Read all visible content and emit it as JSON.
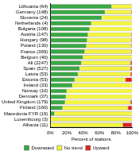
{
  "chart_data": {
    "type": "bar",
    "orientation": "horizontal",
    "stacked": true,
    "categories": [
      "Lithuania (64)",
      "Germany (148)",
      "Slovenia (24)",
      "Netherlands (4)",
      "Bulgaria (108)",
      "Austria (147)",
      "Hungary (98)",
      "Poland (130)",
      "France (369)",
      "Belgium (40)",
      "All (2247)",
      "Spain (527)",
      "Latvia (53)",
      "Estonia (53)",
      "Ireland (33)",
      "Norway (10)",
      "Denmark (37)",
      "United Kingdom (179)",
      "Finland (160)",
      "Macedonia FYR (19)",
      "Luxembourg (3)",
      "Albania (11)"
    ],
    "series": [
      {
        "name": "Downward",
        "color": "#3aa845",
        "values": [
          75,
          67,
          63,
          50,
          48,
          46,
          45,
          44,
          42,
          40,
          38,
          36,
          34,
          30,
          27,
          20,
          19,
          18,
          15,
          5,
          0,
          0
        ]
      },
      {
        "name": "No trend",
        "color": "#f5f542",
        "values": [
          25,
          32,
          37,
          50,
          52,
          53,
          54,
          55,
          57,
          60,
          60,
          62,
          64,
          62,
          73,
          80,
          81,
          80,
          80,
          95,
          100,
          89
        ]
      },
      {
        "name": "Upward",
        "color": "#e02020",
        "values": [
          0,
          1,
          0,
          0,
          0,
          1,
          1,
          1,
          1,
          0,
          2,
          2,
          2,
          8,
          0,
          0,
          0,
          2,
          5,
          0,
          0,
          11
        ]
      }
    ],
    "x_label": "Percent of stations",
    "xlim": [
      0,
      100
    ],
    "xticks": [
      {
        "value": 0,
        "label": "0%"
      },
      {
        "value": 20,
        "label": "20%"
      },
      {
        "value": 40,
        "label": "40%"
      },
      {
        "value": 60,
        "label": "60%"
      },
      {
        "value": 80,
        "label": "80%"
      },
      {
        "value": 100,
        "label": "100%"
      }
    ],
    "legend": "bottom",
    "grid": false
  }
}
